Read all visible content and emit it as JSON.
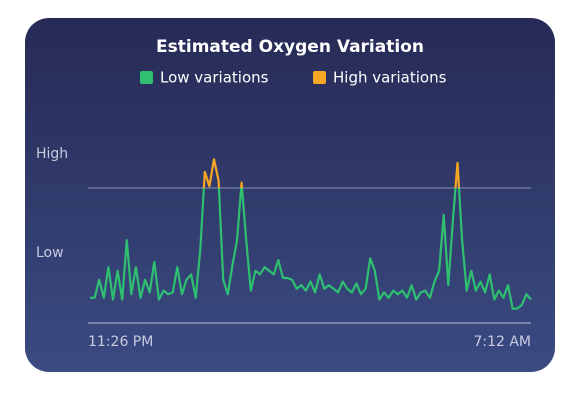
{
  "chart_data": {
    "type": "line",
    "title": "Estimated Oxygen Variation",
    "legend": [
      {
        "name": "Low variations",
        "color": "#2fbf71"
      },
      {
        "name": "High variations",
        "color": "#f5a623"
      }
    ],
    "threshold": 75,
    "ylim": [
      0,
      100
    ],
    "yticks": [
      {
        "value": 20,
        "label": "Low"
      },
      {
        "value": 75,
        "label": "High"
      }
    ],
    "categories": [
      "11:26 PM",
      null,
      null,
      null,
      null,
      null,
      null,
      null,
      null,
      null,
      null,
      null,
      null,
      null,
      null,
      null,
      null,
      null,
      null,
      null,
      null,
      null,
      null,
      null,
      null,
      null,
      null,
      null,
      null,
      null,
      null,
      null,
      null,
      null,
      null,
      null,
      null,
      null,
      null,
      null,
      null,
      null,
      null,
      null,
      null,
      null,
      null,
      null,
      null,
      null,
      null,
      null,
      null,
      null,
      null,
      null,
      null,
      null,
      null,
      null,
      null,
      null,
      null,
      null,
      null,
      null,
      null,
      null,
      null,
      null,
      null,
      null,
      null,
      null,
      null,
      null,
      null,
      null,
      null,
      null,
      null,
      null,
      null,
      null,
      null,
      null,
      null,
      null,
      null,
      null,
      null,
      null,
      null,
      null,
      null,
      null,
      "7:12 AM"
    ],
    "values": [
      14,
      14,
      24,
      14,
      31,
      13,
      29,
      13,
      46,
      16,
      31,
      14,
      24,
      17,
      34,
      13,
      18,
      16,
      17,
      31,
      16,
      24,
      27,
      14,
      41,
      84,
      76,
      91,
      79,
      24,
      16,
      32,
      46,
      78,
      46,
      18,
      29,
      27,
      31,
      29,
      27,
      35,
      25,
      25,
      24,
      19,
      21,
      18,
      23,
      17,
      27,
      19,
      21,
      19,
      17,
      23,
      19,
      17,
      22,
      16,
      19,
      36,
      29,
      13,
      17,
      14,
      18,
      16,
      18,
      14,
      21,
      13,
      17,
      18,
      14,
      23,
      29,
      60,
      21,
      57,
      89,
      46,
      18,
      29,
      18,
      23,
      17,
      27,
      13,
      18,
      14,
      21,
      8,
      8,
      10,
      16,
      13
    ]
  }
}
